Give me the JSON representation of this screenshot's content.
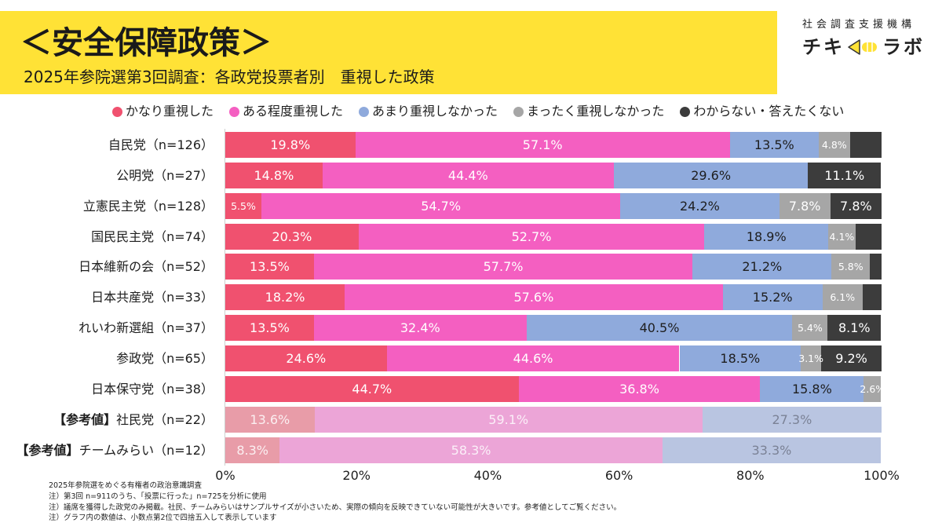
{
  "header": {
    "title": "＜安全保障政策＞",
    "subtitle": "2025年参院選第3回調査：各政党投票者別　重視した政策"
  },
  "logo": {
    "org": "社会調査支援機構",
    "name_left": "チキ",
    "name_right": "ラボ",
    "icon": "megaphone-icon"
  },
  "colors": {
    "banner": "#FFE236",
    "logo_accent": "#FFE236",
    "axis_line": "#CFCFCF"
  },
  "chart_data": {
    "type": "bar",
    "orientation": "horizontal",
    "stacked": true,
    "categories": [
      "自民党（n=126）",
      "公明党（n=27）",
      "立憲民主党（n=128）",
      "国民民主党（n=74）",
      "日本維新の会（n=52）",
      "日本共産党（n=33）",
      "れいわ新選組（n=37）",
      "参政党（n=65）",
      "日本保守党（n=38）",
      "社民党（n=22）",
      "チームみらい（n=12）"
    ],
    "reference": [
      false,
      false,
      false,
      false,
      false,
      false,
      false,
      false,
      false,
      true,
      true
    ],
    "reference_prefix": "【参考値】",
    "series": [
      {
        "name": "かなり重視した",
        "color": "#F0516F",
        "faded_color": "#E89CA8",
        "label_color": "#FFFFFF",
        "faded_label_color": "#FBEFF1",
        "values": [
          19.8,
          14.8,
          5.5,
          20.3,
          13.5,
          18.2,
          13.5,
          24.6,
          44.7,
          13.6,
          8.3
        ],
        "labels": [
          "19.8%",
          "14.8%",
          "5.5%",
          "20.3%",
          "13.5%",
          "18.2%",
          "13.5%",
          "24.6%",
          "44.7%",
          "13.6%",
          "8.3%"
        ]
      },
      {
        "name": "ある程度重視した",
        "color": "#F45FC1",
        "faded_color": "#ECA5D7",
        "label_color": "#FFFFFF",
        "faded_label_color": "#FBEFF8",
        "values": [
          57.1,
          44.4,
          54.7,
          52.7,
          57.7,
          57.6,
          32.4,
          44.6,
          36.8,
          59.1,
          58.3
        ],
        "labels": [
          "57.1%",
          "44.4%",
          "54.7%",
          "52.7%",
          "57.7%",
          "57.6%",
          "32.4%",
          "44.6%",
          "36.8%",
          "59.1%",
          "58.3%"
        ]
      },
      {
        "name": "あまり重視しなかった",
        "color": "#8FAADC",
        "faded_color": "#B9C5E1",
        "label_color": "#1E1E1E",
        "faded_label_color": "#7B8296",
        "values": [
          13.5,
          29.6,
          24.2,
          18.9,
          21.2,
          15.2,
          40.5,
          18.5,
          15.8,
          27.3,
          33.3
        ],
        "labels": [
          "13.5%",
          "29.6%",
          "24.2%",
          "18.9%",
          "21.2%",
          "15.2%",
          "40.5%",
          "18.5%",
          "15.8%",
          "27.3%",
          "33.3%"
        ]
      },
      {
        "name": "まったく重視しなかった",
        "color": "#A6A6A6",
        "label_color": "#FFFFFF",
        "values": [
          4.8,
          0,
          7.8,
          4.1,
          5.8,
          6.1,
          5.4,
          3.1,
          2.6,
          0,
          0
        ],
        "labels": [
          "4.8%",
          "",
          "7.8%",
          "4.1%",
          "5.8%",
          "6.1%",
          "5.4%",
          "3.1%",
          "2.6%",
          "",
          ""
        ]
      },
      {
        "name": "わからない・答えたくない",
        "color": "#3C3C3C",
        "label_color": "#FFFFFF",
        "values": [
          4.8,
          11.1,
          7.8,
          4.0,
          1.8,
          2.9,
          8.1,
          9.2,
          0,
          0,
          0
        ],
        "labels": [
          "",
          "11.1%",
          "7.8%",
          "",
          "",
          "",
          "8.1%",
          "9.2%",
          "",
          "",
          ""
        ]
      }
    ],
    "xlim": [
      0,
      100
    ],
    "xticks": [
      "0%",
      "20%",
      "40%",
      "60%",
      "80%",
      "100%"
    ],
    "legend": "top"
  },
  "footnotes": [
    "2025年参院選をめぐる有権者の政治意識調査",
    "注）第3回 n=911のうち、「投票に行った」n=725を分析に使用",
    "注）議席を獲得した政党のみ掲載。社民、チームみらいはサンプルサイズが小さいため、実際の傾向を反映できていない可能性が大きいです。参考値としてご覧ください。",
    "注）グラフ内の数値は、小数点第2位で四捨五入して表示しています"
  ]
}
